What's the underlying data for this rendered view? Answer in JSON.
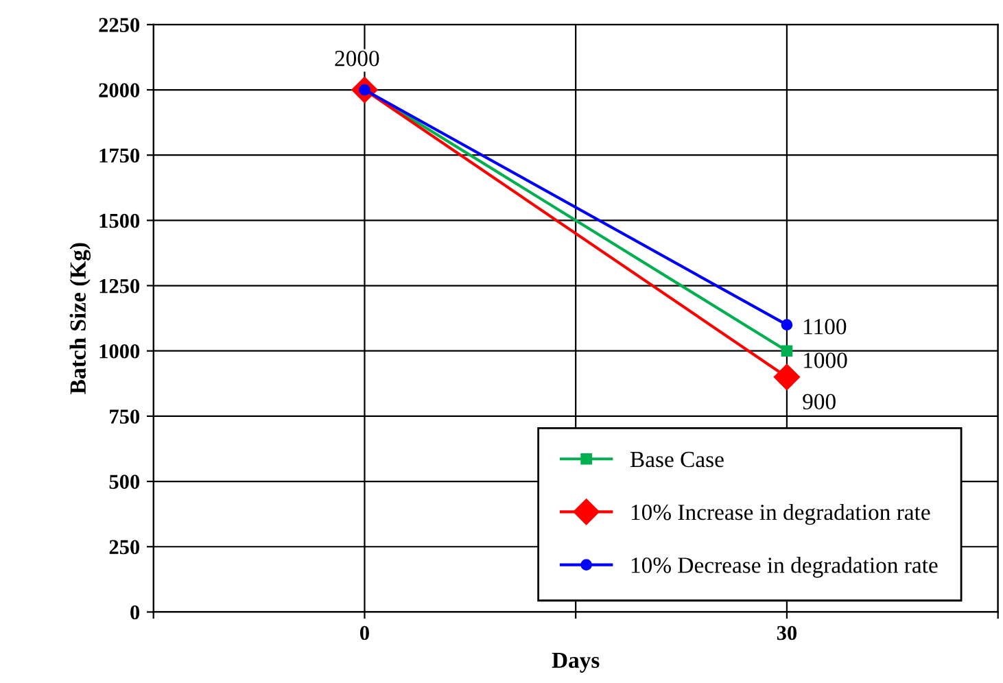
{
  "chart_data": {
    "type": "line",
    "xlabel": "Days",
    "ylabel": "Batch Size (Kg)",
    "x": [
      0,
      30
    ],
    "xlim": [
      -15,
      45
    ],
    "xticks": [
      {
        "value": -15,
        "label": null
      },
      0,
      {
        "value": 15,
        "label": null
      },
      30,
      {
        "value": 45,
        "label": null
      }
    ],
    "ylim": [
      0,
      2250
    ],
    "yticks": [
      0,
      250,
      500,
      750,
      1000,
      1250,
      1500,
      1750,
      2000,
      2250
    ],
    "grid": true,
    "legend": "bottom right",
    "line_style": "solid",
    "series": [
      {
        "name": "Base Case",
        "color": "#00b050",
        "marker": "square",
        "values": [
          2000,
          1000
        ],
        "value_labels": [
          "2000",
          "1000"
        ]
      },
      {
        "name": "10% Increase in degradation rate",
        "color": "#ff0000",
        "marker": "diamond",
        "values": [
          2000,
          900
        ],
        "value_labels": [
          null,
          "900"
        ]
      },
      {
        "name": "10% Decrease in degradation rate",
        "color": "#0000ff",
        "marker": "circle",
        "values": [
          2000,
          1100
        ],
        "value_labels": [
          null,
          "1100"
        ]
      }
    ]
  }
}
